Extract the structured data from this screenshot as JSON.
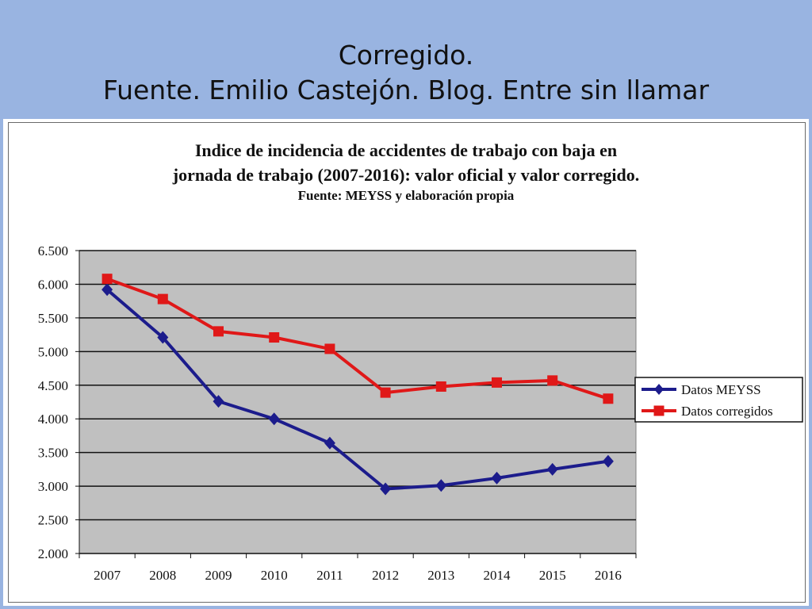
{
  "slide": {
    "title_line1": "Corregido.",
    "title_line2": "Fuente. Emilio Castejón. Blog. Entre sin llamar"
  },
  "colors": {
    "background": "#99b4e1",
    "plot_area": "#c0c0c0",
    "series_meyss": "#1c1c8c",
    "series_corregidos": "#e01818"
  },
  "chart_data": {
    "type": "line",
    "title_line1": "Indice de incidencia de accidentes de trabajo con baja en",
    "title_line2": "jornada de trabajo (2007-2016): valor oficial y valor corregido.",
    "subtitle": "Fuente: MEYSS y elaboración propia",
    "xlabel": "",
    "ylabel": "",
    "categories": [
      "2007",
      "2008",
      "2009",
      "2010",
      "2011",
      "2012",
      "2013",
      "2014",
      "2015",
      "2016"
    ],
    "y_ticks": [
      2000,
      2500,
      3000,
      3500,
      4000,
      4500,
      5000,
      5500,
      6000,
      6500
    ],
    "y_tick_labels": [
      "2.000",
      "2.500",
      "3.000",
      "3.500",
      "4.000",
      "4.500",
      "5.000",
      "5.500",
      "6.000",
      "6.500"
    ],
    "ylim": [
      2000,
      6500
    ],
    "grid": true,
    "legend_position": "right",
    "series": [
      {
        "name": "Datos MEYSS",
        "marker": "diamond",
        "values": [
          5920,
          5210,
          4260,
          4000,
          3640,
          2960,
          3010,
          3120,
          3250,
          3370
        ]
      },
      {
        "name": "Datos corregidos",
        "marker": "square",
        "values": [
          6080,
          5780,
          5300,
          5210,
          5040,
          4390,
          4480,
          4540,
          4570,
          4300
        ]
      }
    ]
  }
}
